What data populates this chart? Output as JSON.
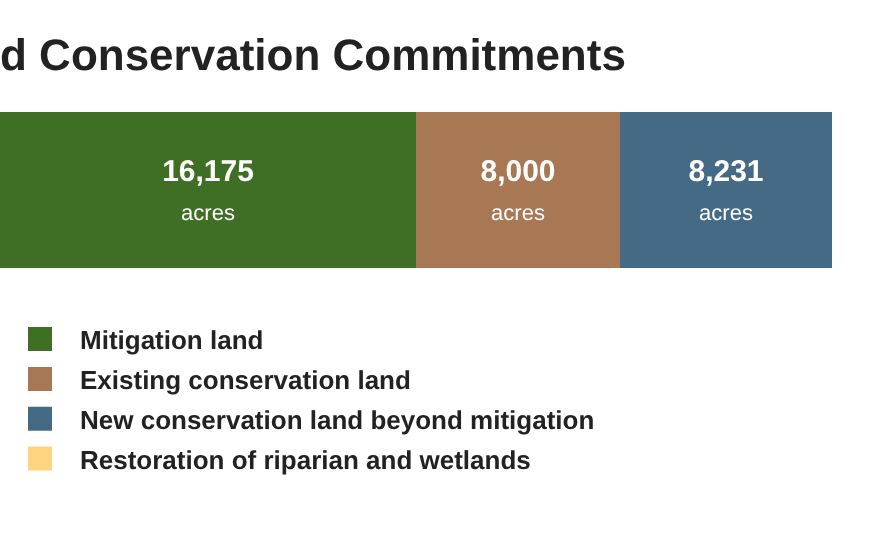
{
  "chart_data": {
    "type": "bar",
    "orientation": "horizontal",
    "stacked": true,
    "title": "d Conservation Commitments",
    "categories": [
      null
    ],
    "series": [
      {
        "name": "Mitigation land",
        "color": "#3f6f25",
        "values": [
          16175
        ],
        "value_labels": [
          "16,175 acres"
        ]
      },
      {
        "name": "Existing conservation land",
        "color": "#a87753",
        "values": [
          8000
        ],
        "value_labels": [
          "8,000 acres"
        ]
      },
      {
        "name": "New conservation land beyond mitigation",
        "color": "#456a85",
        "values": [
          8231
        ],
        "value_labels": [
          "8,231 acres"
        ]
      },
      {
        "name": "Restoration of riparian and wetlands",
        "color": "#fdd57e",
        "values": [
          null
        ],
        "value_labels": [
          null
        ]
      }
    ],
    "legend": "bottom left",
    "tick_labels": false
  }
}
